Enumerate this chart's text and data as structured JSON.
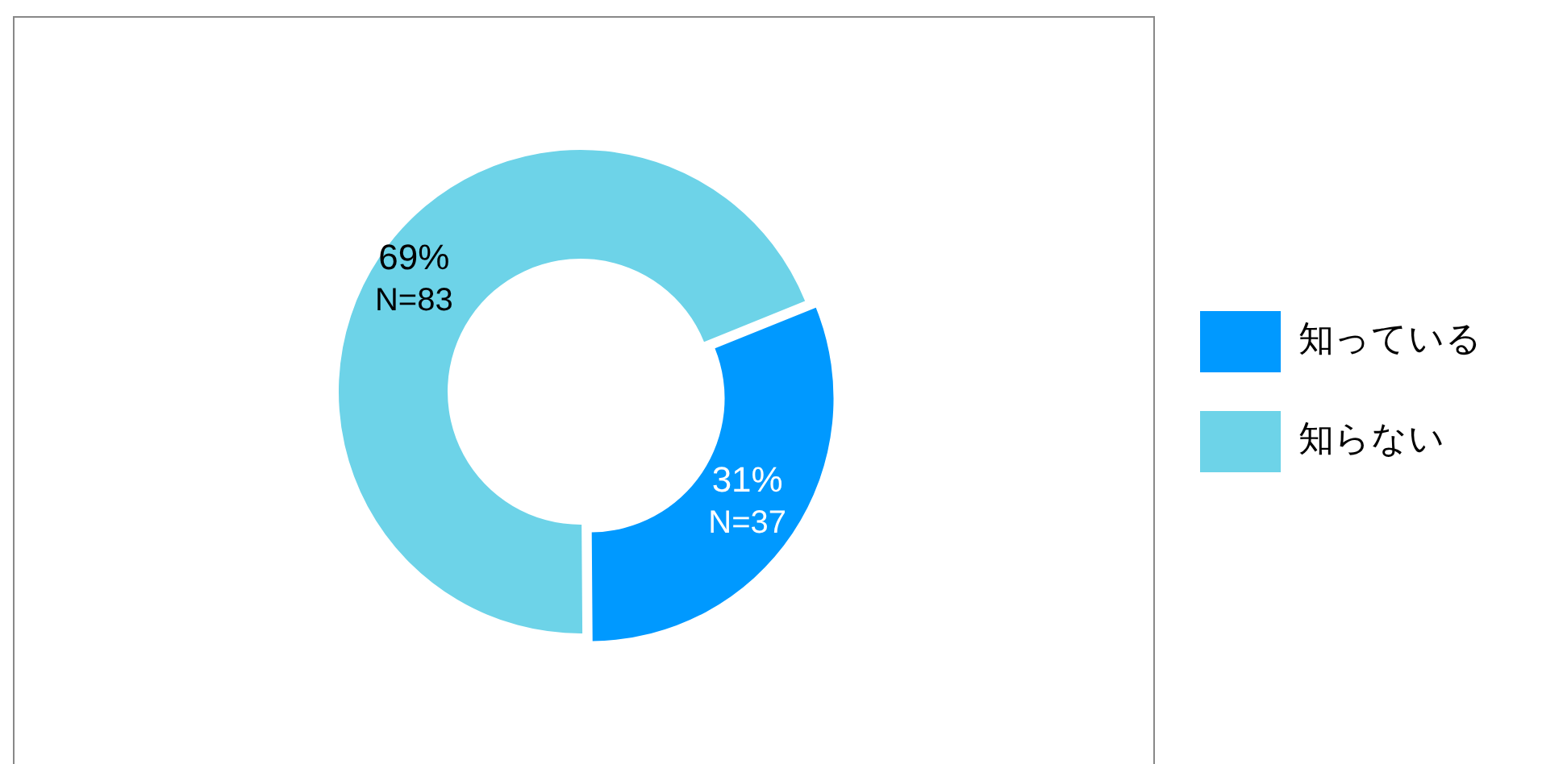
{
  "chart_data": {
    "type": "donut",
    "categories": [
      "知っている",
      "知らない"
    ],
    "values": [
      31,
      69
    ],
    "colors": [
      "#0099ff",
      "#6dd3e8"
    ],
    "value_labels": [
      "31%",
      "69%"
    ],
    "annotations": [
      {
        "text": "N=37",
        "x": "知っている"
      },
      {
        "text": "N=83",
        "x": "知らない"
      }
    ],
    "legend": "right"
  }
}
